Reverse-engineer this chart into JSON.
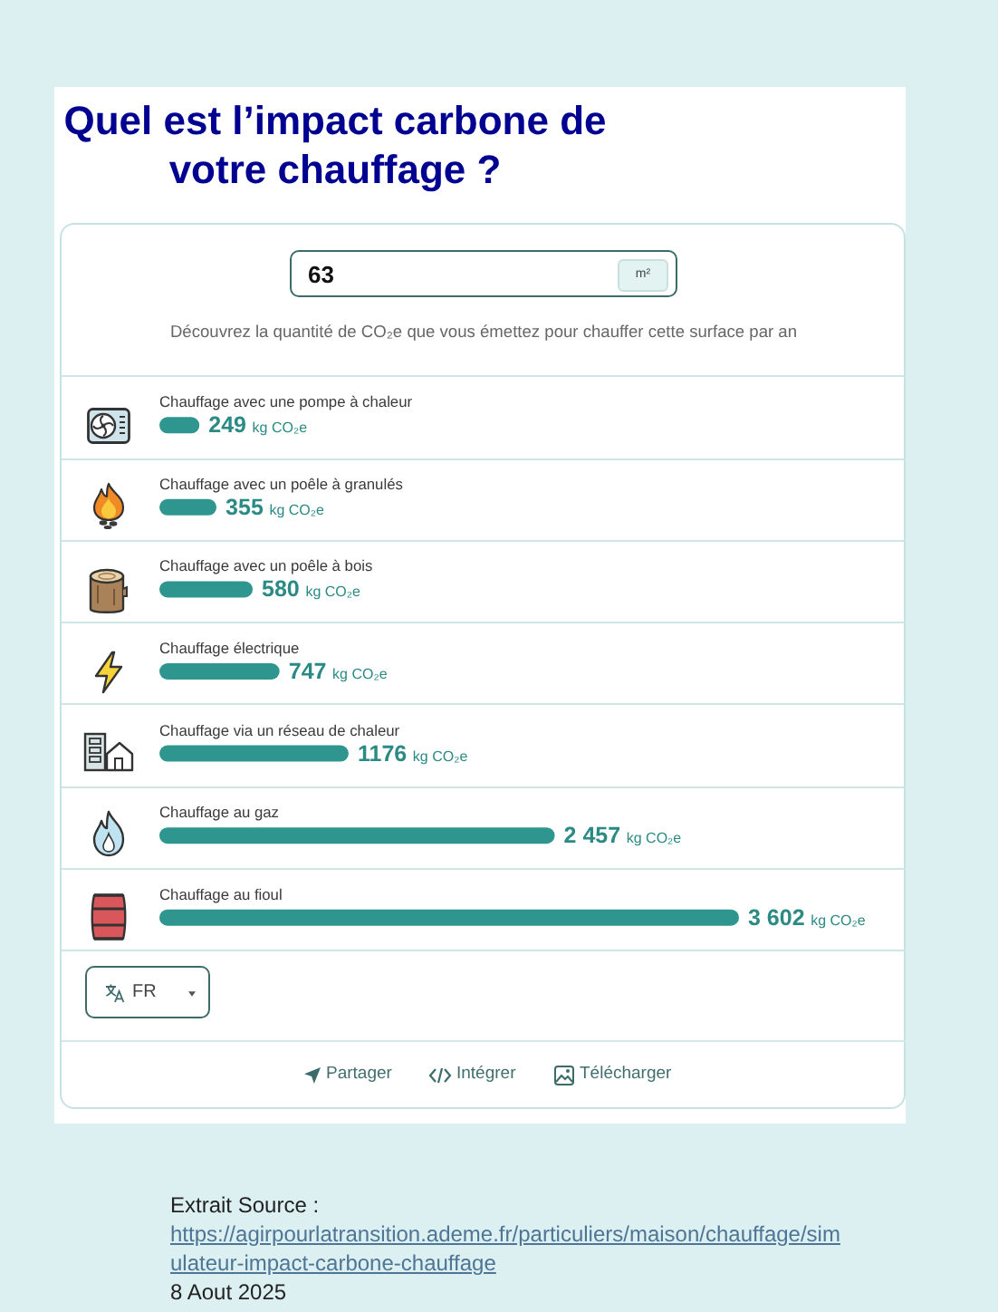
{
  "chart_data": {
    "type": "bar",
    "orientation": "horizontal",
    "title": "Quel est l’impact carbone de votre chauffage ?",
    "subtitle": "Découvrez la quantité de CO₂e que vous émettez pour chauffer cette surface par an",
    "categories": [
      "Chauffage avec une pompe à chaleur",
      "Chauffage avec un poêle à granulés",
      "Chauffage avec un poêle à bois",
      "Chauffage électrique",
      "Chauffage via un réseau de chaleur",
      "Chauffage au gaz",
      "Chauffage au fioul"
    ],
    "values": [
      249,
      355,
      580,
      747,
      1176,
      2457,
      3602
    ],
    "color": "#2f968f",
    "value_labels": [
      "249 kg CO₂e",
      "355 kg CO₂e",
      "580 kg CO₂e",
      "747 kg CO₂e",
      "1176 kg CO₂e",
      "2 457 kg CO₂e",
      "3 602 kg CO₂e"
    ],
    "tick_labels": "y",
    "annotations": [
      "63",
      "m²",
      "FR",
      "Partager",
      "Intégrer",
      "Télécharger",
      "Extrait Source :",
      "https://agirpourlatransition.ademe.fr/particuliers/maison/chauffage/simulateur-impact-carbone-chauffage",
      "8 Aout 2025"
    ]
  }
}
